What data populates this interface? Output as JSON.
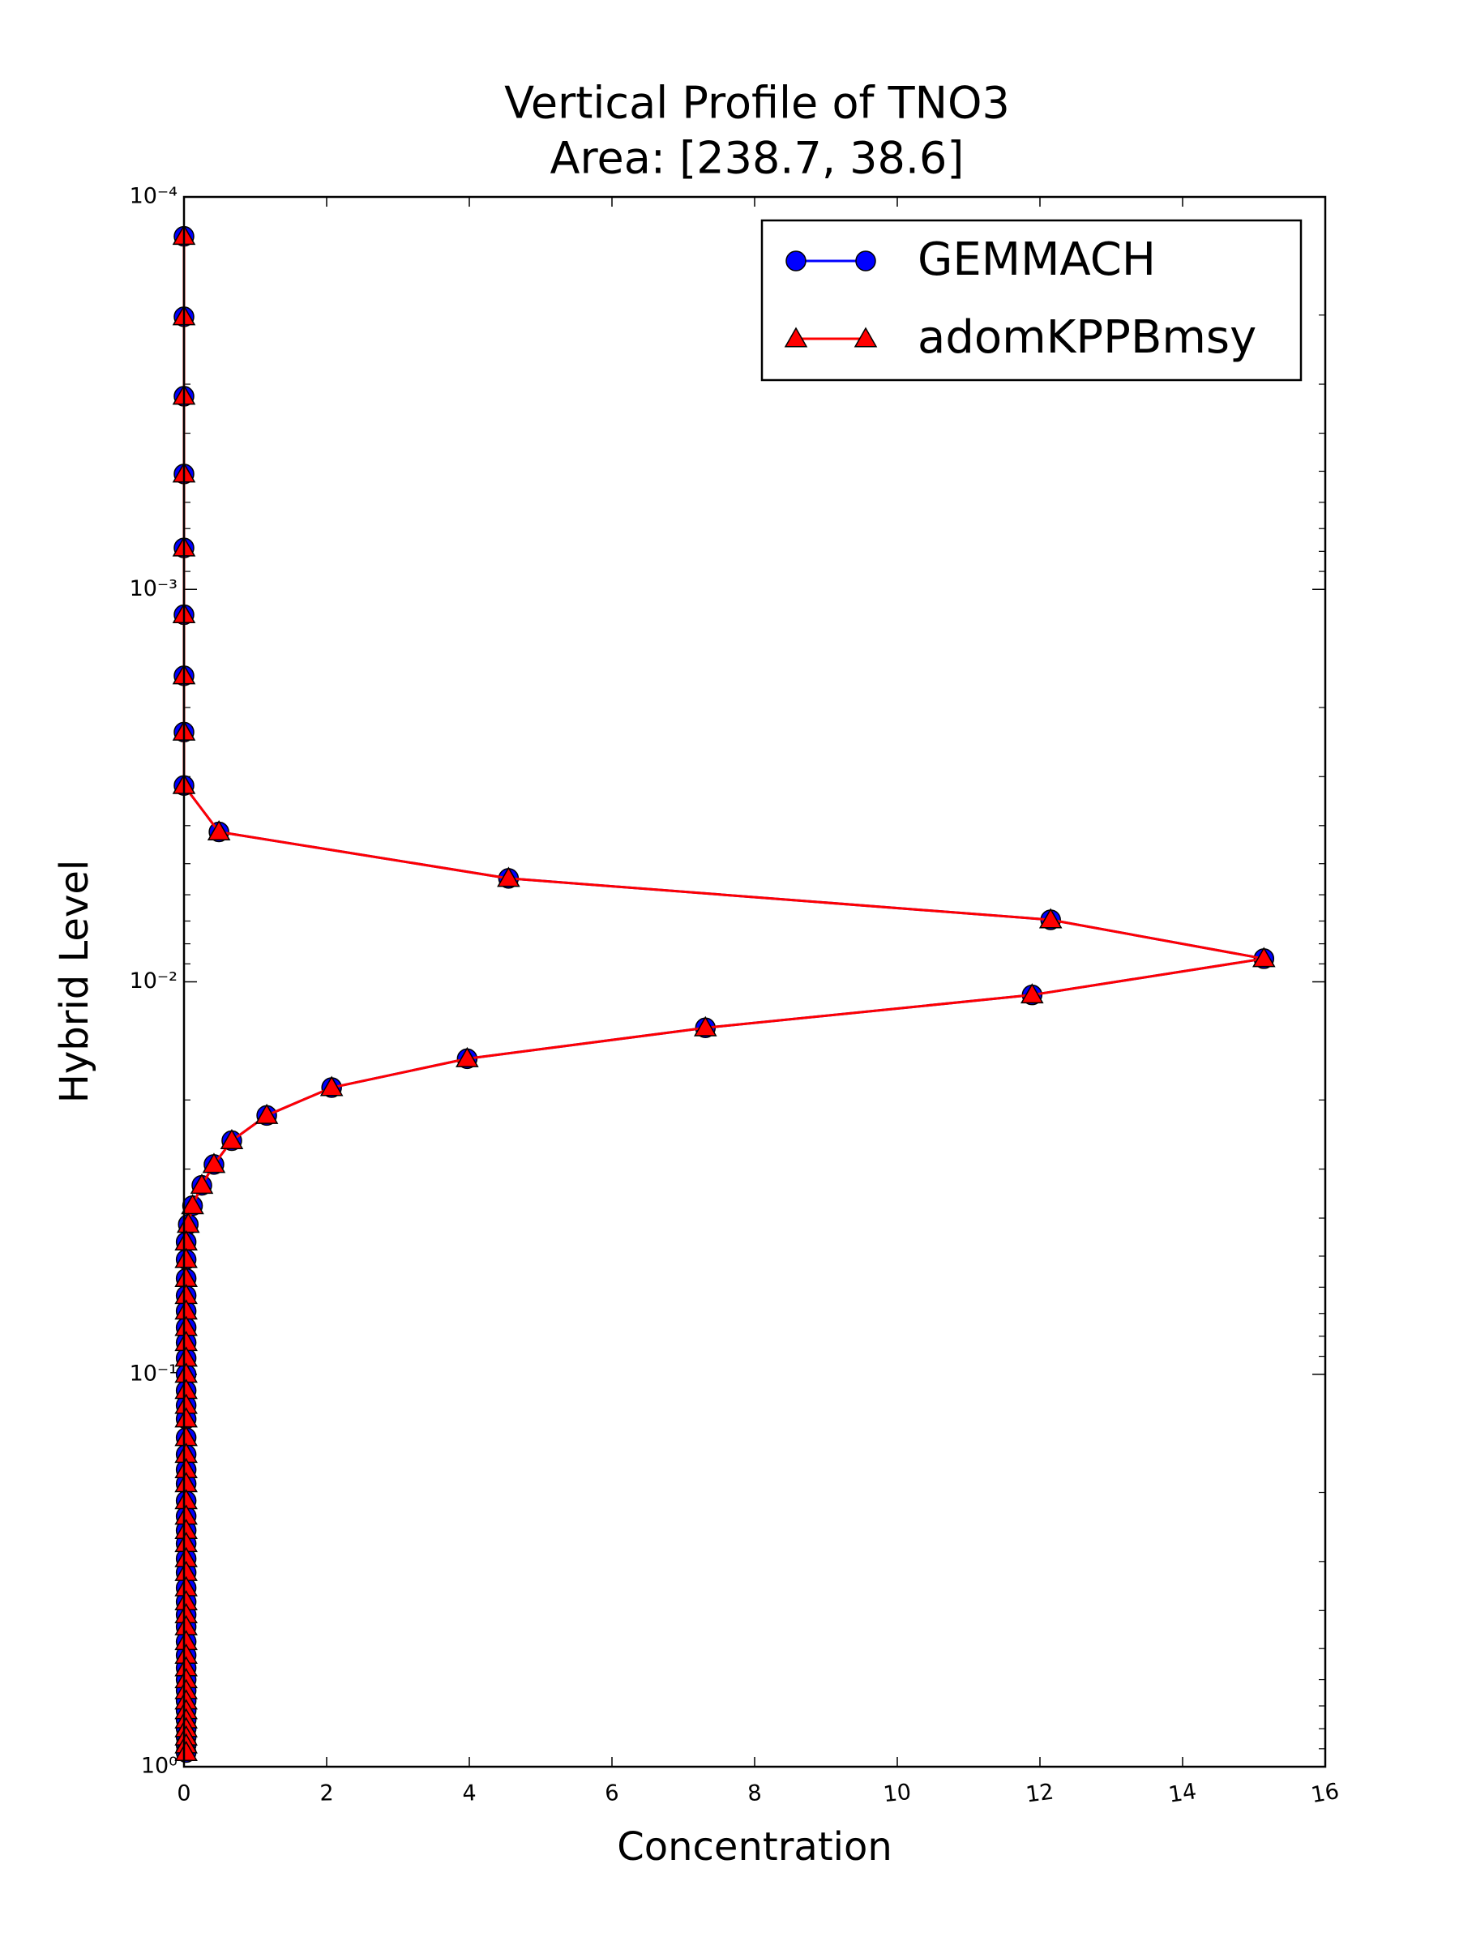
{
  "chart_data": {
    "type": "line",
    "title": "Vertical Profile of TNO3",
    "subtitle": "Area: [238.7, 38.6]",
    "x_label": "Concentration",
    "y_label": "Hybrid Level",
    "xlim": [
      0,
      16
    ],
    "xticks": [
      0,
      2,
      4,
      6,
      8,
      10,
      12,
      14,
      16
    ],
    "ylim": [
      0.0001,
      1
    ],
    "y_log": true,
    "y_inverted": true,
    "yticks": [
      {
        "value": 0.0001,
        "label": "10⁻⁴"
      },
      {
        "value": 0.001,
        "label": "10⁻³"
      },
      {
        "value": 0.01,
        "label": "10⁻²"
      },
      {
        "value": 0.1,
        "label": "10⁻¹"
      },
      {
        "value": 1,
        "label": "10⁰"
      }
    ],
    "legend_position": "upper right",
    "series": [
      {
        "name": "GEMMACH",
        "color": "#0000ff",
        "marker": "circle",
        "x": [
          0,
          0,
          0,
          0,
          0,
          0,
          0,
          0,
          0,
          0.49,
          4.55,
          12.15,
          15.14,
          11.89,
          7.31,
          3.97,
          2.07,
          1.16,
          0.67,
          0.42,
          0.25,
          0.12,
          0.06,
          0.03,
          0.03,
          0.03,
          0.03,
          0.03,
          0.03,
          0.03,
          0.03,
          0.03,
          0.03,
          0.03,
          0.03,
          0.03,
          0.03,
          0.03,
          0.03,
          0.03,
          0.03,
          0.03,
          0.03,
          0.03,
          0.03,
          0.03,
          0.03,
          0.03,
          0.03,
          0.03,
          0.03,
          0.03,
          0.03,
          0.03,
          0.03,
          0.03,
          0.03,
          0.03,
          0.03,
          0.03,
          0.03
        ],
        "values": [
          0.000126,
          0.000202,
          0.000322,
          0.000508,
          0.000784,
          0.00116,
          0.00166,
          0.00231,
          0.00316,
          0.00415,
          0.00545,
          0.00695,
          0.00873,
          0.0108,
          0.0131,
          0.0157,
          0.0186,
          0.0219,
          0.0254,
          0.0292,
          0.033,
          0.0372,
          0.0415,
          0.046,
          0.051,
          0.057,
          0.063,
          0.069,
          0.076,
          0.083,
          0.091,
          0.1,
          0.11,
          0.12,
          0.13,
          0.145,
          0.16,
          0.175,
          0.19,
          0.21,
          0.23,
          0.25,
          0.27,
          0.295,
          0.32,
          0.35,
          0.38,
          0.41,
          0.44,
          0.48,
          0.52,
          0.56,
          0.6,
          0.64,
          0.68,
          0.72,
          0.76,
          0.8,
          0.84,
          0.88,
          0.92
        ]
      },
      {
        "name": "adomKPPBmsy",
        "color": "#ff0000",
        "marker": "triangle",
        "x": [
          0,
          0,
          0,
          0,
          0,
          0,
          0,
          0,
          0,
          0.49,
          4.55,
          12.15,
          15.14,
          11.89,
          7.31,
          3.97,
          2.07,
          1.16,
          0.67,
          0.42,
          0.25,
          0.12,
          0.06,
          0.03,
          0.03,
          0.03,
          0.03,
          0.03,
          0.03,
          0.03,
          0.03,
          0.03,
          0.03,
          0.03,
          0.03,
          0.03,
          0.03,
          0.03,
          0.03,
          0.03,
          0.03,
          0.03,
          0.03,
          0.03,
          0.03,
          0.03,
          0.03,
          0.03,
          0.03,
          0.03,
          0.03,
          0.03,
          0.03,
          0.03,
          0.03,
          0.03,
          0.03,
          0.03,
          0.03,
          0.03,
          0.03
        ],
        "values": [
          0.000126,
          0.000202,
          0.000322,
          0.000508,
          0.000784,
          0.00116,
          0.00166,
          0.00231,
          0.00316,
          0.00415,
          0.00545,
          0.00695,
          0.00873,
          0.0108,
          0.0131,
          0.0157,
          0.0186,
          0.0219,
          0.0254,
          0.0292,
          0.033,
          0.0372,
          0.0415,
          0.046,
          0.051,
          0.057,
          0.063,
          0.069,
          0.076,
          0.083,
          0.091,
          0.1,
          0.11,
          0.12,
          0.13,
          0.145,
          0.16,
          0.175,
          0.19,
          0.21,
          0.23,
          0.25,
          0.27,
          0.295,
          0.32,
          0.35,
          0.38,
          0.41,
          0.44,
          0.48,
          0.52,
          0.56,
          0.6,
          0.64,
          0.68,
          0.72,
          0.76,
          0.8,
          0.84,
          0.88,
          0.92
        ]
      }
    ]
  }
}
